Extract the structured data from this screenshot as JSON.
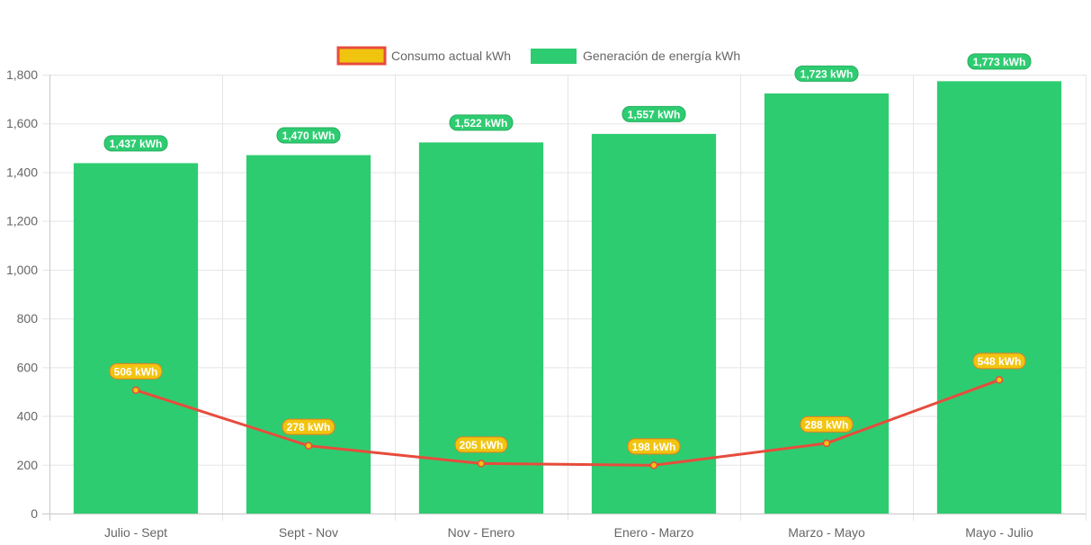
{
  "chart_data": {
    "type": "bar",
    "categories": [
      "Julio - Sept",
      "Sept - Nov",
      "Nov - Enero",
      "Enero - Marzo",
      "Marzo - Mayo",
      "Mayo - Julio"
    ],
    "series": [
      {
        "name": "Consumo actual kWh",
        "type": "line",
        "values": [
          506,
          278,
          205,
          198,
          288,
          548
        ],
        "labels": [
          "506 kWh",
          "278 kWh",
          "205 kWh",
          "198 kWh",
          "288 kWh",
          "548 kWh"
        ],
        "line_color": "#e74c3c",
        "fill_color": "#f1c40f",
        "label_border_color": "#e67e22"
      },
      {
        "name": "Generación de energía kWh",
        "type": "bar",
        "values": [
          1437,
          1470,
          1522,
          1557,
          1723,
          1773
        ],
        "labels": [
          "1,437 kWh",
          "1,470 kWh",
          "1,522 kWh",
          "1,557 kWh",
          "1,723 kWh",
          "1,773 kWh"
        ],
        "fill_color": "#2ecc71",
        "label_border_color": "#27ae60"
      }
    ],
    "ylim": [
      0,
      1800
    ],
    "y_ticks": [
      0,
      200,
      400,
      600,
      800,
      1000,
      1200,
      1400,
      1600,
      1800
    ],
    "y_tick_labels": [
      "0",
      "200",
      "400",
      "600",
      "800",
      "1,000",
      "1,200",
      "1,400",
      "1,600",
      "1,800"
    ],
    "title": "",
    "xlabel": "",
    "ylabel": "",
    "grid": true,
    "legend_position": "top-center",
    "colors": {
      "grid": "#e5e5e5",
      "axis": "#c8c8c8",
      "tick_text": "#666666"
    }
  }
}
